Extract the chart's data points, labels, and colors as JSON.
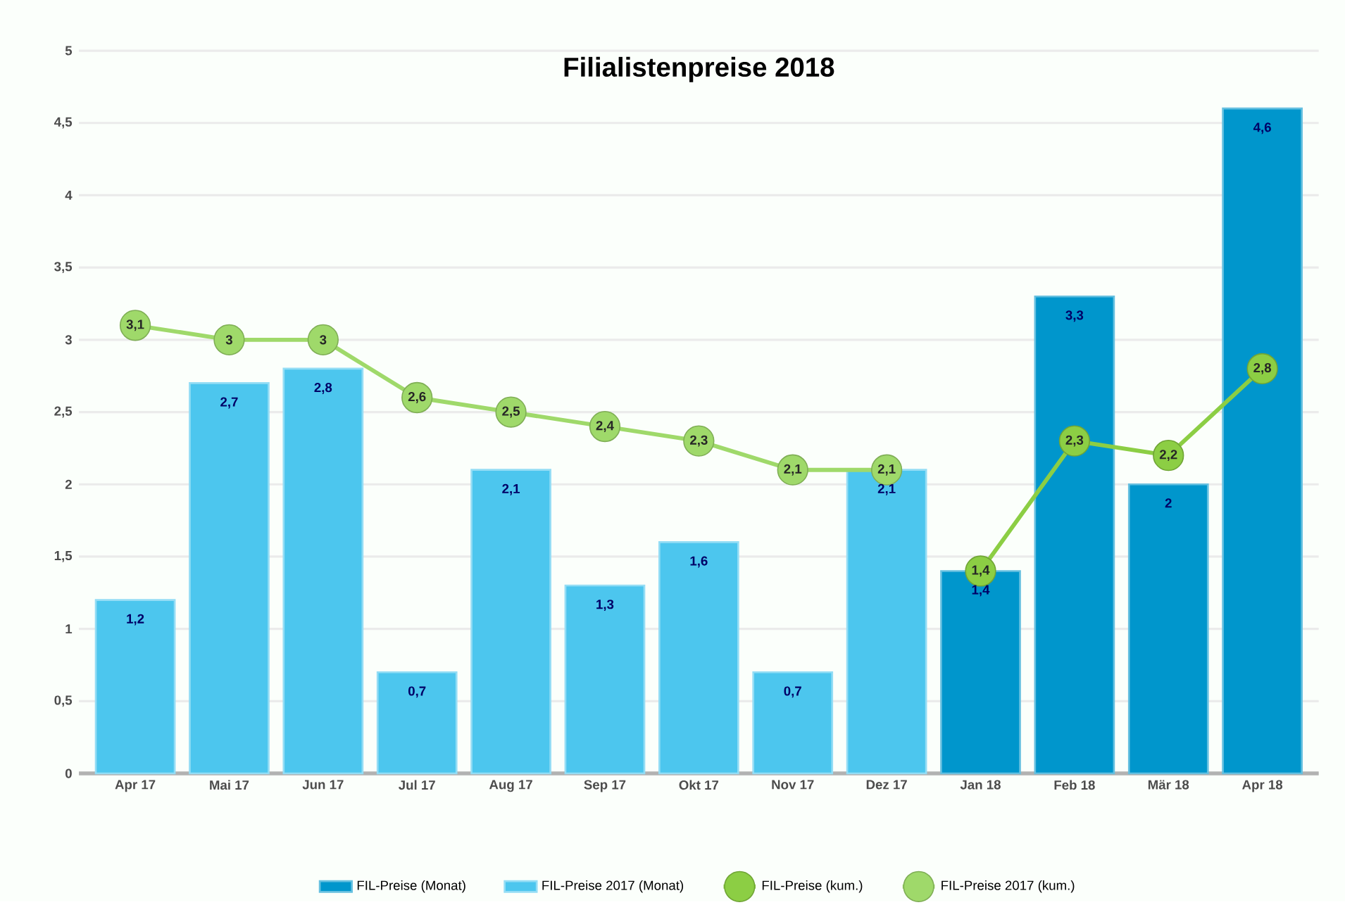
{
  "chart_data": {
    "type": "bar",
    "title": "Filialistenpreise 2018",
    "categories": [
      "Apr 17",
      "Mai 17",
      "Jun 17",
      "Jul 17",
      "Aug 17",
      "Sep 17",
      "Okt 17",
      "Nov 17",
      "Dez 17",
      "Jan 18",
      "Feb 18",
      "Mär 18",
      "Apr 18"
    ],
    "series": [
      {
        "name": "FIL-Preise (Monat)",
        "color": "#0096cc",
        "values": [
          null,
          null,
          null,
          null,
          null,
          null,
          null,
          null,
          null,
          1.4,
          3.3,
          2,
          4.6
        ],
        "value_labels": [
          null,
          null,
          null,
          null,
          null,
          null,
          null,
          null,
          null,
          "1,4",
          "3,3",
          "2",
          "4,6"
        ]
      },
      {
        "name": "FIL-Preise 2017 (Monat)",
        "color": "#4cc6ee",
        "values": [
          1.2,
          2.7,
          2.8,
          0.7,
          2.1,
          1.3,
          1.6,
          0.7,
          2.1,
          null,
          null,
          null,
          null
        ],
        "value_labels": [
          "1,2",
          "2,7",
          "2,8",
          "0,7",
          "2,1",
          "1,3",
          "1,6",
          "0,7",
          "2,1",
          null,
          null,
          null,
          null
        ]
      },
      {
        "name": "FIL-Preise (kum.)",
        "type": "line",
        "color": "#8cce44",
        "values": [
          null,
          null,
          null,
          null,
          null,
          null,
          null,
          null,
          null,
          1.4,
          2.3,
          2.2,
          2.8
        ],
        "value_labels": [
          null,
          null,
          null,
          null,
          null,
          null,
          null,
          null,
          null,
          "1,4",
          "2,3",
          "2,2",
          "2,8"
        ]
      },
      {
        "name": "FIL-Preise 2017 (kum.)",
        "type": "line",
        "color": "#9fd96a",
        "values": [
          3.1,
          3,
          3,
          2.6,
          2.5,
          2.4,
          2.3,
          2.1,
          2.1,
          null,
          null,
          null,
          null
        ],
        "value_labels": [
          "3,1",
          "3",
          "3",
          "2,6",
          "2,5",
          "2,4",
          "2,3",
          "2,1",
          "2,1",
          null,
          null,
          null,
          null
        ]
      }
    ],
    "ylim": [
      0,
      5
    ],
    "yticks": [
      0,
      {
        "value": 0.5,
        "label": "0,5"
      },
      1,
      {
        "value": 1.5,
        "label": "1,5"
      },
      2,
      {
        "value": 2.5,
        "label": "2,5"
      },
      3,
      {
        "value": 3.5,
        "label": "3,5"
      },
      4,
      {
        "value": 4.5,
        "label": "4,5"
      },
      5
    ],
    "grid": "y",
    "legend": "bottom",
    "marker": "circle",
    "line_style": "solid"
  }
}
